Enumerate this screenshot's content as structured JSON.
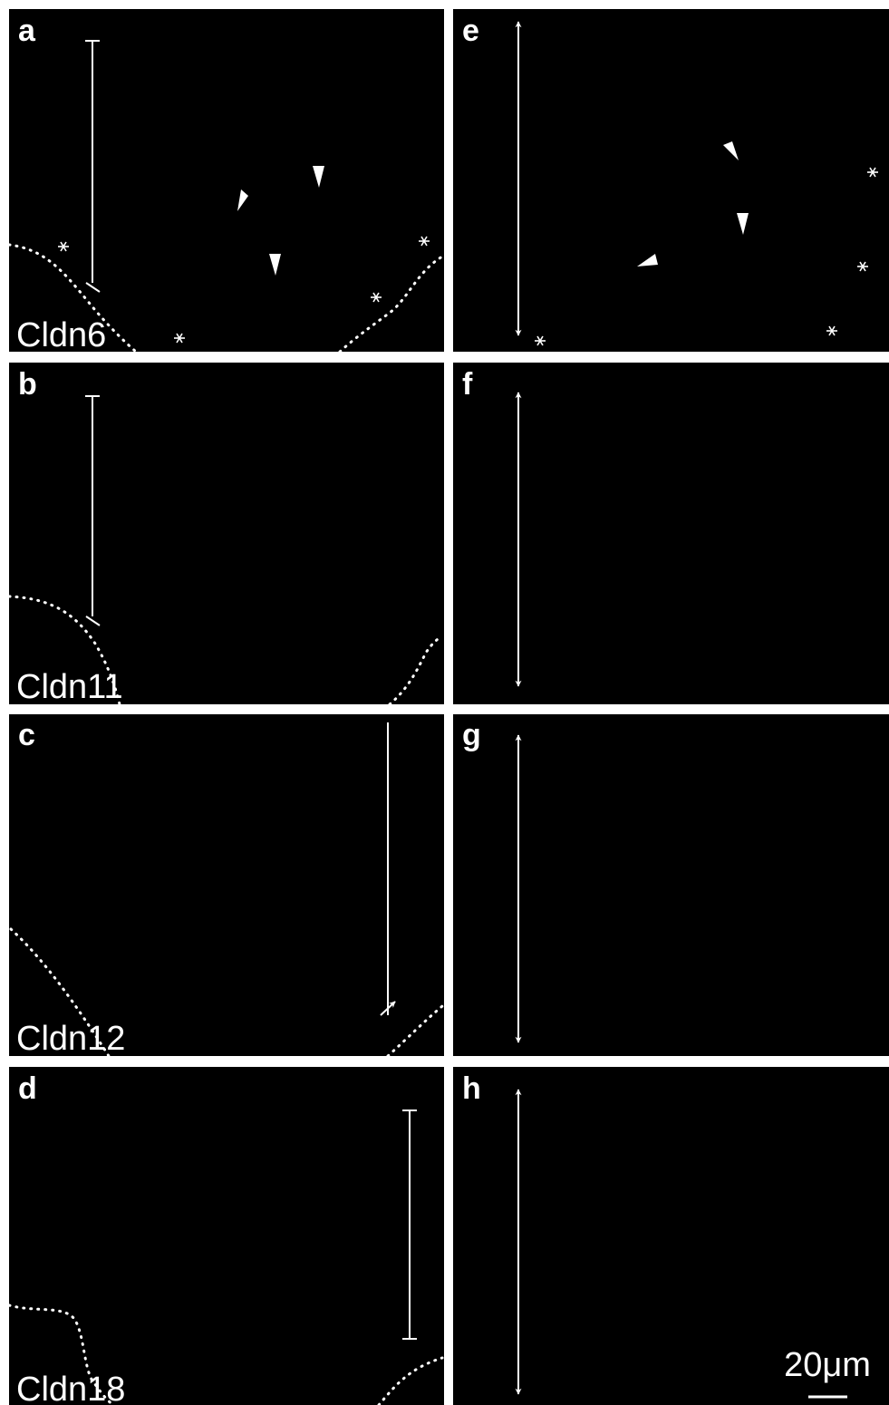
{
  "panels": [
    {
      "letter": "a",
      "label": "Cldn6"
    },
    {
      "letter": "b",
      "label": "Cldn11"
    },
    {
      "letter": "c",
      "label": "Cldn12"
    },
    {
      "letter": "d",
      "label": "Cldn18"
    },
    {
      "letter": "e"
    },
    {
      "letter": "f"
    },
    {
      "letter": "g"
    },
    {
      "letter": "h"
    }
  ],
  "scale_bar": "20μm"
}
